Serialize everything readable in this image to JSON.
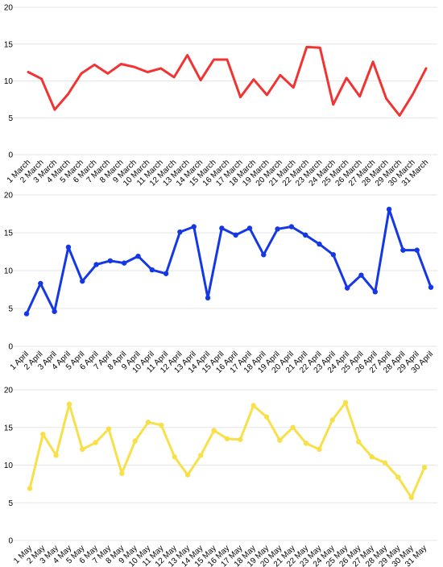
{
  "chart_data": [
    {
      "type": "line",
      "color": "#f23333",
      "categories": [
        "1 March",
        "2 March",
        "3 March",
        "4 March",
        "5 March",
        "6 March",
        "7 March",
        "8 March",
        "9 March",
        "10 March",
        "11 March",
        "12 March",
        "13 March",
        "14 March",
        "15 March",
        "16 March",
        "17 March",
        "18 March",
        "19 March",
        "20 March",
        "21 March",
        "22 March",
        "23 March",
        "24 March",
        "25 March",
        "26 March",
        "27 March",
        "28 March",
        "29 March",
        "30 March",
        "31 March"
      ],
      "values": [
        11.2,
        10.3,
        6.1,
        8.2,
        11.0,
        12.2,
        11.0,
        12.3,
        11.9,
        11.2,
        11.7,
        10.5,
        13.5,
        10.1,
        12.9,
        12.9,
        7.8,
        10.2,
        8.1,
        10.8,
        9.1,
        14.6,
        14.5,
        6.8,
        10.4,
        7.9,
        12.6,
        7.6,
        5.3,
        8.2,
        11.7
      ],
      "yticks": [
        "0",
        "5",
        "10",
        "15",
        "20"
      ],
      "ylim": [
        0,
        20
      ],
      "grid": true,
      "markers": false
    },
    {
      "type": "line",
      "color": "#1438e6",
      "categories": [
        "1 April",
        "2 April",
        "3 April",
        "4 April",
        "5 April",
        "6 April",
        "7 April",
        "8 April",
        "9 April",
        "10 April",
        "11 April",
        "12 April",
        "13 April",
        "14 April",
        "15 April",
        "16 April",
        "17 April",
        "18 April",
        "19 April",
        "20 April",
        "21 April",
        "22 April",
        "23 April",
        "24 April",
        "25 April",
        "26 April",
        "27 April",
        "28 April",
        "29 April",
        "30 April"
      ],
      "values": [
        4.3,
        8.3,
        4.6,
        13.1,
        8.6,
        10.8,
        11.3,
        11.0,
        11.9,
        10.1,
        9.6,
        15.1,
        15.8,
        6.4,
        15.6,
        14.7,
        15.6,
        12.1,
        15.5,
        15.8,
        14.7,
        13.5,
        12.1,
        7.7,
        9.4,
        7.2,
        18.1,
        12.7,
        12.7,
        7.8
      ],
      "yticks": [
        "0",
        "5",
        "10",
        "15",
        "20"
      ],
      "ylim": [
        0,
        20
      ],
      "grid": true,
      "markers": true
    },
    {
      "type": "line",
      "color": "#f7e04a",
      "categories": [
        "1 May",
        "2 May",
        "3 May",
        "4 May",
        "5 May",
        "6 May",
        "7 May",
        "8 May",
        "9 May",
        "10 May",
        "11 May",
        "12 May",
        "13 May",
        "14 May",
        "15 May",
        "16 May",
        "17 May",
        "18 May",
        "19 May",
        "20 May",
        "21 May",
        "22 May",
        "23 May",
        "24 May",
        "25 May",
        "26 May",
        "27 May",
        "28 May",
        "29 May",
        "30 May",
        "31 May"
      ],
      "values": [
        6.9,
        14.1,
        11.3,
        18.1,
        12.1,
        13.0,
        14.8,
        8.9,
        13.2,
        15.7,
        15.3,
        11.1,
        8.7,
        11.3,
        14.6,
        13.5,
        13.4,
        17.9,
        16.4,
        13.3,
        15.0,
        12.9,
        12.1,
        16.0,
        18.3,
        13.1,
        11.1,
        10.3,
        8.4,
        5.7,
        9.7
      ],
      "yticks": [
        "0",
        "5",
        "10",
        "15",
        "20"
      ],
      "ylim": [
        0,
        20
      ],
      "grid": true,
      "markers": true
    }
  ]
}
